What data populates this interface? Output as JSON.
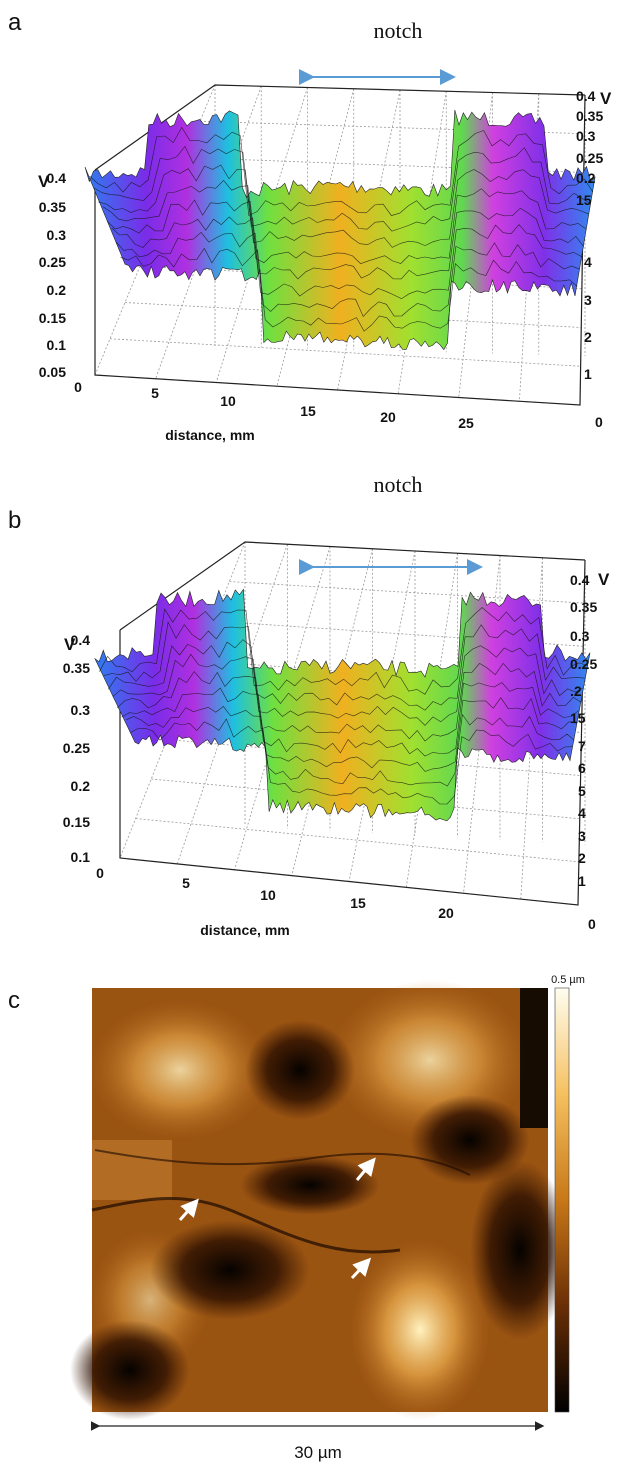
{
  "panels": [
    {
      "label": "a",
      "annotation": "notch",
      "x_axis_title": "distance, mm",
      "x_ticks": [
        "0",
        "5",
        "10",
        "15",
        "20",
        "25"
      ],
      "left_axis_title": "V",
      "left_ticks": [
        "0.4",
        "0.35",
        "0.3",
        "0.25",
        "0.2",
        "0.15",
        "0.1",
        "0.05"
      ],
      "right_axis_title": "V",
      "right_ticks": [
        "0.4",
        "0.35",
        "0.3",
        "0.25",
        "0.2",
        "15"
      ],
      "depth_ticks": [
        "4",
        "3",
        "2",
        "1",
        "0"
      ]
    },
    {
      "label": "b",
      "annotation": "notch",
      "x_axis_title": "distance, mm",
      "x_ticks": [
        "0",
        "5",
        "10",
        "15",
        "20"
      ],
      "left_axis_title": "V",
      "left_ticks": [
        "0.4",
        "0.35",
        "0.3",
        "0.25",
        "0.2",
        "0.15",
        "0.1"
      ],
      "right_axis_title": "V",
      "right_ticks": [
        "0.4",
        "0.35",
        "0.3",
        "0.25",
        ".2",
        "15"
      ],
      "depth_ticks": [
        "7",
        "6",
        "5",
        "4",
        "3",
        "2",
        "1",
        "0"
      ]
    }
  ],
  "afm": {
    "label": "c",
    "colorbar_max": "0.5 µm",
    "scale_bar": "30 µm"
  }
}
